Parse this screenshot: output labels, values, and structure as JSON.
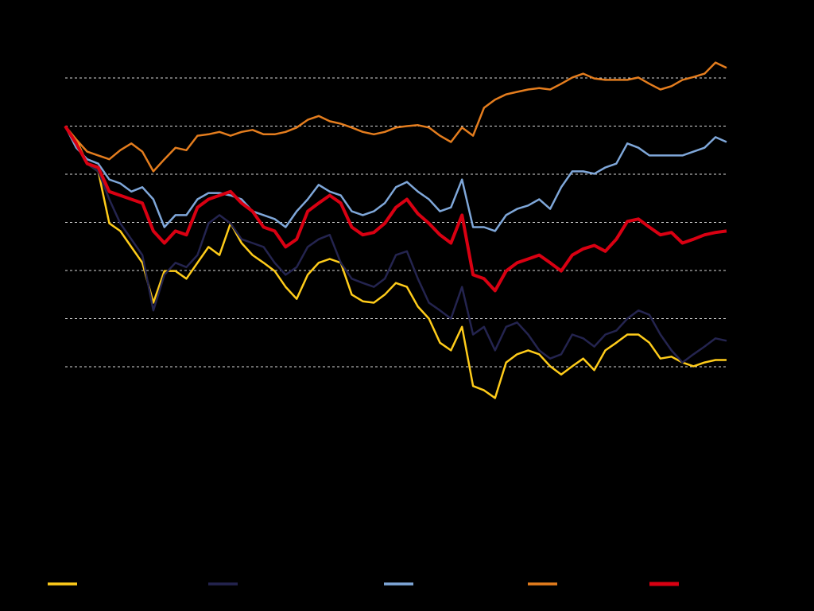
{
  "chart_data": {
    "type": "line",
    "ylim": [
      40,
      115
    ],
    "yticks": [
      50,
      60,
      70,
      80,
      90,
      100,
      110
    ],
    "grid": true,
    "legend": "bottom",
    "series": [
      {
        "color": "#ffcc1a",
        "width": 2.5,
        "values": [
          100,
          97.2,
          92.2,
          90.6,
          79.8,
          78.2,
          74.9,
          71.6,
          63.3,
          69.9,
          69.9,
          68.3,
          71.6,
          74.9,
          73.2,
          79.8,
          75.7,
          73.2,
          71.6,
          69.9,
          66.6,
          64.1,
          69.1,
          71.6,
          72.4,
          71.6,
          65.0,
          63.6,
          63.3,
          65.0,
          67.4,
          66.6,
          62.5,
          60.0,
          55.0,
          53.4,
          58.3,
          46.0,
          45.1,
          43.5,
          50.9,
          52.6,
          53.4,
          52.6,
          50.1,
          48.4,
          50.1,
          51.7,
          49.3,
          53.4,
          55.0,
          56.7,
          56.7,
          55.0,
          51.7,
          52.1,
          50.9,
          50.1,
          50.9,
          51.4,
          51.4
        ]
      },
      {
        "color": "#24244f",
        "width": 2.5,
        "values": [
          100,
          96.4,
          92.2,
          90.6,
          84.8,
          79.8,
          76.5,
          73.2,
          61.7,
          69.1,
          71.6,
          70.7,
          73.2,
          79.8,
          81.5,
          79.8,
          76.5,
          75.7,
          74.9,
          71.6,
          69.1,
          70.7,
          74.9,
          76.5,
          77.4,
          71.6,
          68.3,
          67.4,
          66.6,
          68.3,
          73.2,
          74.0,
          68.3,
          63.3,
          61.7,
          60.0,
          66.6,
          56.7,
          58.3,
          53.4,
          58.3,
          59.2,
          56.7,
          53.4,
          51.7,
          52.6,
          56.7,
          55.9,
          54.2,
          56.7,
          57.5,
          60.0,
          61.7,
          60.8,
          56.7,
          53.4,
          50.9,
          52.6,
          54.2,
          55.9,
          55.4
        ]
      },
      {
        "color": "#7fa7d9",
        "width": 2.5,
        "values": [
          100,
          95.5,
          93.1,
          92.2,
          88.9,
          88.1,
          86.4,
          87.3,
          84.8,
          79.0,
          81.5,
          81.5,
          84.8,
          86.1,
          86.1,
          85.6,
          84.8,
          82.3,
          81.5,
          80.7,
          79.0,
          82.3,
          84.8,
          87.8,
          86.4,
          85.6,
          82.3,
          81.5,
          82.3,
          84.0,
          87.3,
          88.4,
          86.4,
          84.8,
          82.3,
          83.1,
          88.9,
          79.0,
          79.0,
          78.2,
          81.5,
          82.8,
          83.5,
          84.8,
          82.8,
          87.3,
          90.6,
          90.6,
          90.1,
          91.4,
          92.2,
          96.4,
          95.5,
          93.9,
          93.9,
          93.9,
          93.9,
          94.7,
          95.5,
          97.7,
          96.7
        ]
      },
      {
        "color": "#e47d1e",
        "width": 2.5,
        "values": [
          100,
          97.2,
          94.7,
          93.9,
          93.1,
          95.0,
          96.4,
          94.7,
          90.6,
          93.1,
          95.5,
          95.0,
          98.0,
          98.3,
          98.8,
          98.0,
          98.8,
          99.2,
          98.3,
          98.3,
          98.8,
          99.7,
          101.3,
          102.1,
          101.0,
          100.5,
          99.7,
          98.8,
          98.3,
          98.8,
          99.7,
          100,
          100.2,
          99.7,
          98.0,
          96.7,
          99.7,
          98.0,
          103.8,
          105.5,
          106.6,
          107.1,
          107.6,
          107.9,
          107.6,
          108.8,
          110.1,
          110.9,
          109.9,
          109.6,
          109.6,
          109.6,
          110.1,
          108.8,
          107.6,
          108.3,
          109.6,
          110.2,
          110.9,
          113.2,
          112.1
        ]
      },
      {
        "color": "#d90012",
        "width": 4,
        "values": [
          100,
          96.4,
          92.2,
          91.4,
          86.4,
          85.6,
          84.8,
          84.0,
          78.2,
          75.7,
          78.2,
          77.4,
          83.1,
          84.8,
          85.6,
          86.4,
          84.0,
          82.3,
          79.0,
          78.2,
          74.9,
          76.5,
          82.3,
          84.0,
          85.6,
          84.0,
          79.0,
          77.4,
          77.9,
          79.8,
          83.1,
          84.8,
          81.8,
          79.8,
          77.4,
          75.7,
          81.5,
          69.1,
          68.3,
          65.8,
          69.9,
          71.6,
          72.4,
          73.2,
          71.6,
          69.9,
          73.2,
          74.5,
          75.2,
          74.0,
          76.5,
          80.2,
          80.7,
          79.0,
          77.4,
          77.9,
          75.7,
          76.5,
          77.4,
          77.9,
          78.2
        ]
      }
    ]
  }
}
